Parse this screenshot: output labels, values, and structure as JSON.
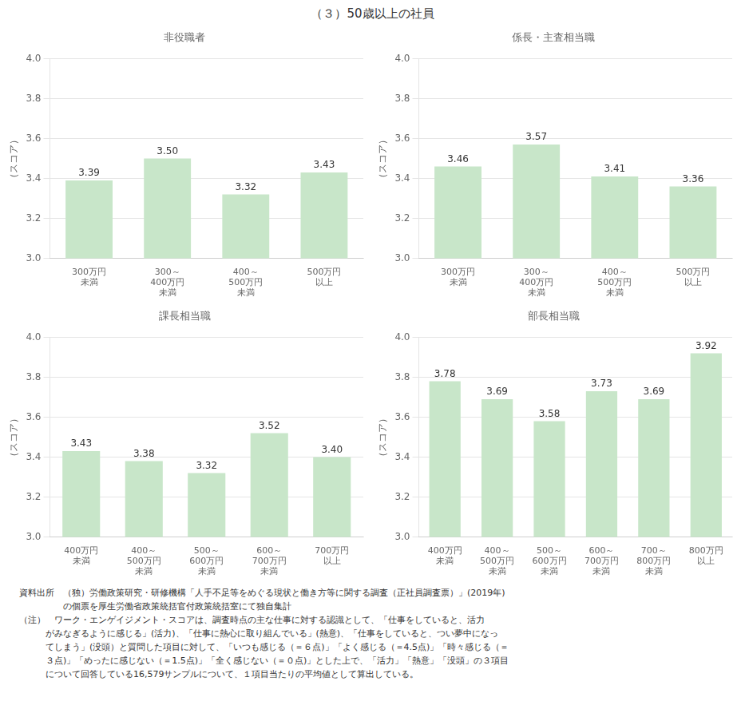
{
  "title": "（３）50歳以上の社員",
  "chart_data": [
    {
      "type": "bar",
      "title": "非役職者",
      "ylabel": "（スコア）",
      "categories": [
        "300万円\n未満",
        "300～\n400万円\n未満",
        "400～\n500万円\n未満",
        "500万円\n以上"
      ],
      "values": [
        3.39,
        3.5,
        3.32,
        3.43
      ],
      "value_labels": [
        "3.39",
        "3.50",
        "3.32",
        "3.43"
      ],
      "data_labels": true,
      "color": "#c8e6c9",
      "grid": true,
      "ylim": [
        3.0,
        4.0
      ],
      "yticks": [
        {
          "value": 3.0,
          "label": "3.0"
        },
        3.2,
        3.4,
        3.6,
        3.8,
        {
          "value": 4.0,
          "label": "4.0"
        }
      ]
    },
    {
      "type": "bar",
      "title": "係長・主査相当職",
      "ylabel": "（スコア）",
      "categories": [
        "300万円\n未満",
        "300～\n400万円\n未満",
        "400～\n500万円\n未満",
        "500万円\n以上"
      ],
      "values": [
        3.46,
        3.57,
        3.41,
        3.36
      ],
      "value_labels": [
        "3.46",
        "3.57",
        "3.41",
        "3.36"
      ],
      "data_labels": true,
      "color": "#c8e6c9",
      "grid": true,
      "ylim": [
        3.0,
        4.0
      ],
      "yticks": [
        {
          "value": 3.0,
          "label": "3.0"
        },
        3.2,
        3.4,
        3.6,
        3.8,
        {
          "value": 4.0,
          "label": "4.0"
        }
      ]
    },
    {
      "type": "bar",
      "title": "課長相当職",
      "ylabel": "（スコア）",
      "categories": [
        "400万円\n未満",
        "400～\n500万円\n未満",
        "500～\n600万円\n未満",
        "600～\n700万円\n未満",
        "700万円\n以上"
      ],
      "values": [
        3.43,
        3.38,
        3.32,
        3.52,
        3.4
      ],
      "value_labels": [
        "3.43",
        "3.38",
        "3.32",
        "3.52",
        "3.40"
      ],
      "data_labels": true,
      "color": "#c8e6c9",
      "grid": true,
      "ylim": [
        3.0,
        4.0
      ],
      "yticks": [
        {
          "value": 3.0,
          "label": "3.0"
        },
        3.2,
        3.4,
        3.6,
        3.8,
        {
          "value": 4.0,
          "label": "4.0"
        }
      ]
    },
    {
      "type": "bar",
      "title": "部長相当職",
      "ylabel": "（スコア）",
      "categories": [
        "400万円\n未満",
        "400～\n500万円\n未満",
        "500～\n600万円\n未満",
        "600～\n700万円\n未満",
        "700～\n800万円\n未満",
        "800万円\n以上"
      ],
      "values": [
        3.78,
        3.69,
        3.58,
        3.73,
        3.69,
        3.92
      ],
      "value_labels": [
        "3.78",
        "3.69",
        "3.58",
        "3.73",
        "3.69",
        "3.92"
      ],
      "data_labels": true,
      "color": "#c8e6c9",
      "grid": true,
      "ylim": [
        3.0,
        4.0
      ],
      "yticks": [
        {
          "value": 3.0,
          "label": "3.0"
        },
        3.2,
        3.4,
        3.6,
        3.8,
        {
          "value": 4.0,
          "label": "4.0"
        }
      ]
    }
  ],
  "annotations": [
    "資料出所　（独）労働政策研究・研修機構「人手不足等をめぐる現状と働き方等に関する調査（正社員調査票）」(2019年)",
    "　　　　　の個票を厚生労働省政策統括官付政策統括室にて独自集計",
    "（注）　ワーク・エンゲイジメント・スコアは、調査時点の主な仕事に対する認識として、「仕事をしていると、活力",
    "　　　がみなぎるように感じる」(活力)、「仕事に熱心に取り組んでいる」(熱意)、「仕事をしていると、つい夢中になっ",
    "　　　てしまう」(没頭）と質問した項目に対して、「いつも感じる（＝６点)」「よく感じる（＝4.5点)」「時々感じる（＝",
    "　　　３点)」「めったに感じない（＝1.5点)」「全く感じない（＝０点)」とした上で、「活力」「熱意」「没頭」の３項目",
    "　　　について回答している16,579サンプルについて、１項目当たりの平均値として算出している。"
  ]
}
